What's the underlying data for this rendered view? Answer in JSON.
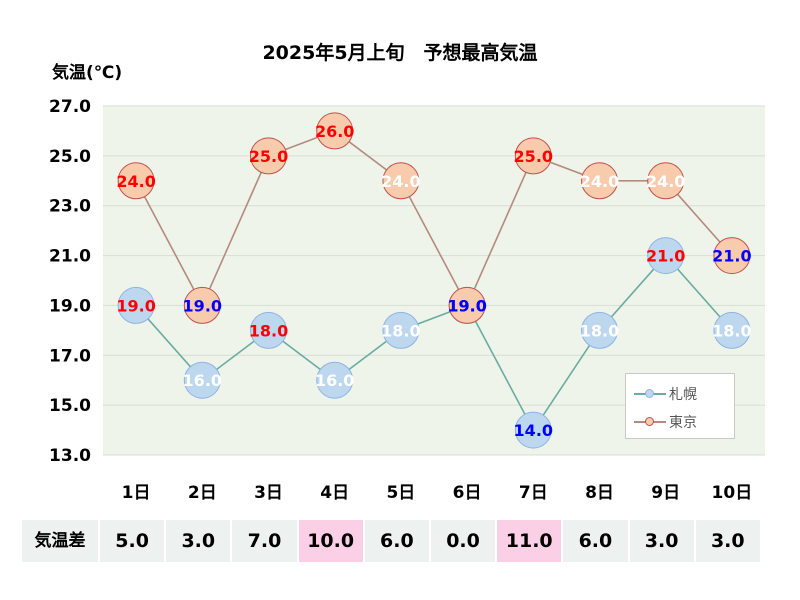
{
  "chart_data": {
    "type": "line",
    "title": "2025年5月上旬　予想最高気温",
    "ylabel": "気温(℃)",
    "ylim": [
      13.0,
      27.0
    ],
    "yticks": [
      "13.0",
      "15.0",
      "17.0",
      "19.0",
      "21.0",
      "23.0",
      "25.0",
      "27.0"
    ],
    "categories": [
      "1日",
      "2日",
      "3日",
      "4日",
      "5日",
      "6日",
      "7日",
      "8日",
      "9日",
      "10日"
    ],
    "legend_position": "bottom-right",
    "grid": true,
    "series": [
      {
        "name": "札幌",
        "values": [
          19.0,
          16.0,
          18.0,
          16.0,
          18.0,
          19.0,
          14.0,
          18.0,
          21.0,
          18.0
        ],
        "labels": [
          "19.0",
          "16.0",
          "18.0",
          "16.0",
          "18.0",
          "19.0",
          "14.0",
          "18.0",
          "21.0",
          "18.0"
        ],
        "label_colors": [
          "#ff0000",
          "#ffffff",
          "#ff0000",
          "#ffffff",
          "#ffffff",
          "#0000ff",
          "#0000ff",
          "#ffffff",
          "#ff0000",
          "#ffffff"
        ],
        "line_color": "#6aaba3",
        "marker_fill": "#bdd7ee",
        "marker_stroke": "#8eb4e3"
      },
      {
        "name": "東京",
        "values": [
          24.0,
          19.0,
          25.0,
          26.0,
          24.0,
          19.0,
          25.0,
          24.0,
          24.0,
          21.0
        ],
        "labels": [
          "24.0",
          "19.0",
          "25.0",
          "26.0",
          "24.0",
          "19.0",
          "25.0",
          "24.0",
          "24.0",
          "21.0"
        ],
        "label_colors": [
          "#ff0000",
          "#0000ff",
          "#ff0000",
          "#ff0000",
          "#ffffff",
          "#0000ff",
          "#ff0000",
          "#ffffff",
          "#ffffff",
          "#0000ff"
        ],
        "line_color": "#b58a7e",
        "marker_fill": "#f8cbad",
        "marker_stroke": "#c0504d"
      }
    ]
  },
  "diff_table": {
    "header": "気温差",
    "values": [
      "5.0",
      "3.0",
      "7.0",
      "10.0",
      "6.0",
      "0.0",
      "11.0",
      "6.0",
      "3.0",
      "3.0"
    ],
    "highlight": [
      false,
      false,
      false,
      true,
      false,
      false,
      true,
      false,
      false,
      false
    ],
    "cell_color": "#edf1ef",
    "highlight_color": "#fbcfe5"
  },
  "plot_background": "#eef4e9"
}
